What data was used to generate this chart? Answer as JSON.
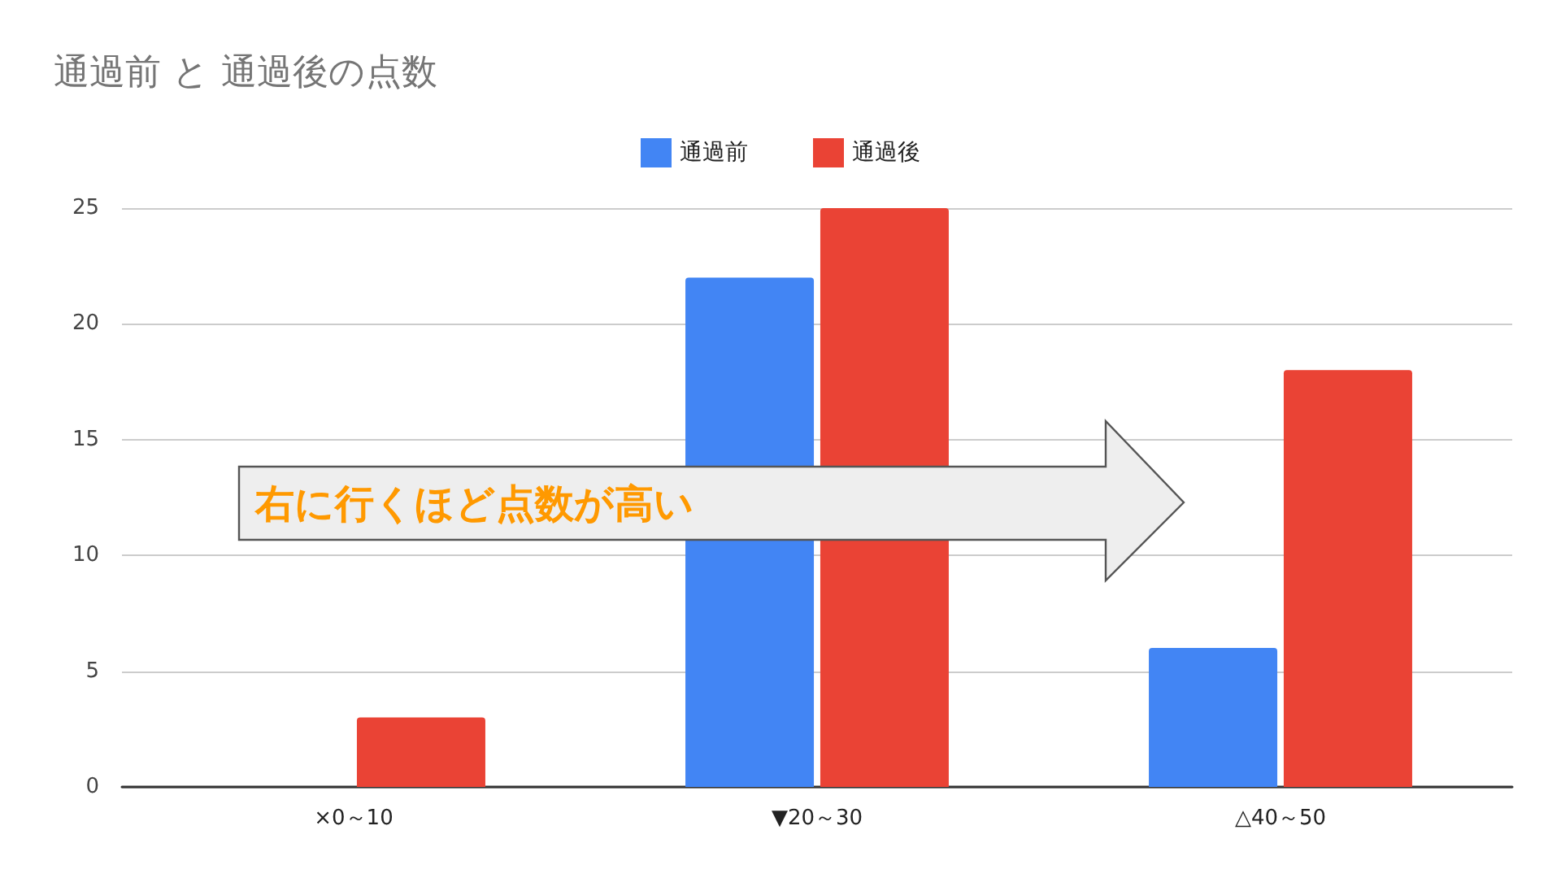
{
  "chart_data": {
    "type": "bar",
    "title": "通過前 と 通過後の点数",
    "categories": [
      "×0～10",
      "▼20～30",
      "△40～50"
    ],
    "series": [
      {
        "name": "通過前",
        "color": "#4285f4",
        "values": [
          0,
          22,
          6
        ]
      },
      {
        "name": "通過後",
        "color": "#ea4335",
        "values": [
          3,
          25,
          18
        ]
      }
    ],
    "ylim": [
      0,
      25
    ],
    "yticks": [
      0,
      5,
      10,
      15,
      20,
      25
    ],
    "grid": "y",
    "legend": "top",
    "annotations": [
      "右に行くほど点数が高い"
    ]
  }
}
